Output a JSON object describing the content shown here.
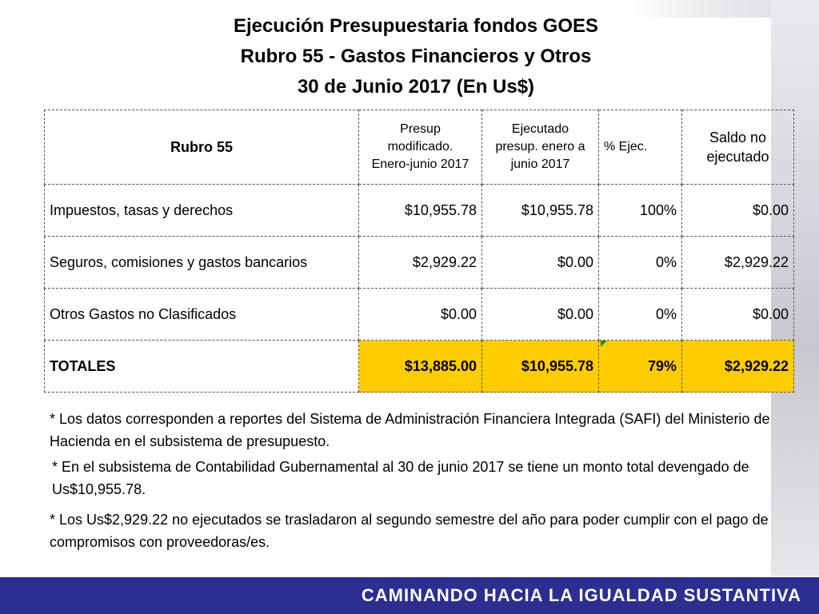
{
  "title": {
    "line1": "Ejecución Presupuestaria fondos GOES",
    "line2": "Rubro 55 - Gastos Financieros y Otros",
    "line3": "30 de Junio 2017 (En Us$)"
  },
  "table": {
    "headers": {
      "rubro": "Rubro 55",
      "presup_l1": "Presup",
      "presup_l2": "modificado.",
      "presup_l3": "Enero-junio 2017",
      "ejec_l1": "Ejecutado",
      "ejec_l2": "presup. enero a",
      "ejec_l3": "junio 2017",
      "pct": "% Ejec.",
      "saldo_l1": "Saldo no",
      "saldo_l2": "ejecutado"
    },
    "rows": [
      {
        "rubro": "Impuestos, tasas y derechos",
        "presup": "$10,955.78",
        "ejecutado": "$10,955.78",
        "pct": "100%",
        "saldo": "$0.00"
      },
      {
        "rubro": "Seguros, comisiones y gastos bancarios",
        "presup": "$2,929.22",
        "ejecutado": "$0.00",
        "pct": "0%",
        "saldo": "$2,929.22"
      },
      {
        "rubro": "Otros Gastos no Clasificados",
        "presup": "$0.00",
        "ejecutado": "$0.00",
        "pct": "0%",
        "saldo": "$0.00"
      }
    ],
    "totals": {
      "rubro": "TOTALES",
      "presup": "$13,885.00",
      "ejecutado": "$10,955.78",
      "pct": "79%",
      "saldo": "$2,929.22"
    }
  },
  "notes": [
    "*  Los datos corresponden a reportes del Sistema de Administración Financiera Integrada (SAFI) del Ministerio de Hacienda en el subsistema de presupuesto.",
    "* En el subsistema de Contabilidad Gubernamental al 30 de junio 2017 se tiene un monto total devengado de Us$10,955.78.",
    "* Los Us$2,929.22 no ejecutados  se trasladaron al segundo semestre del año para poder  cumplir con el pago de compromisos con proveedoras/es."
  ],
  "footer": {
    "text": "CAMINANDO HACIA LA IGUALDAD SUSTANTIVA"
  },
  "colors": {
    "totals_highlight": "#ffcc00",
    "footer_bg": "#2c2f8f",
    "footer_text": "#ffffff"
  }
}
